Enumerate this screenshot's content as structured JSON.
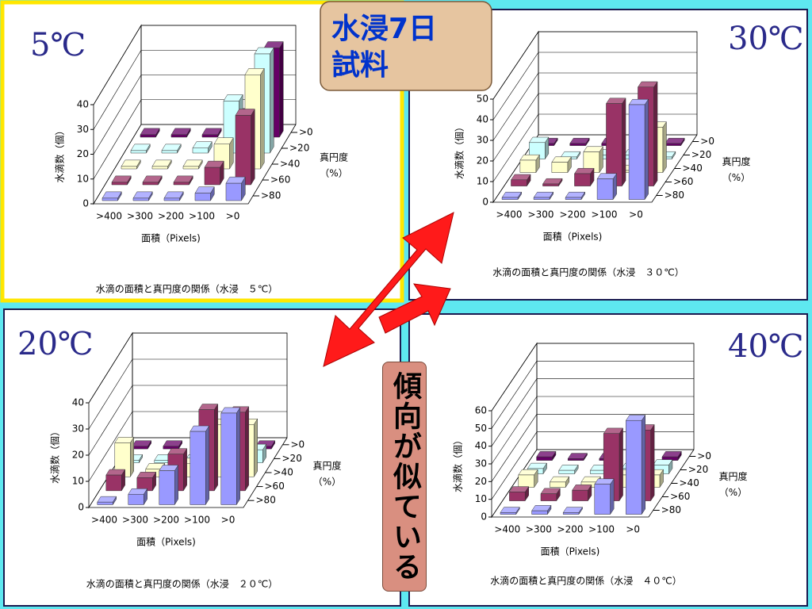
{
  "slide": {
    "title_lines": [
      "水浸7日",
      "試料"
    ],
    "callout": "傾向が似ている"
  },
  "chart_data": [
    {
      "type": "bar3d",
      "corner_label": "5℃",
      "title": "水滴の面積と真円度の関係（水浸　５℃）",
      "x_label": "面積（Pixels)",
      "y_label": "水滴数（個）",
      "depth_label": [
        "真円度",
        "（%）"
      ],
      "categories": [
        ">400",
        ">300",
        ">200",
        ">100",
        ">0"
      ],
      "ylim": [
        0,
        40
      ],
      "yticks": [
        0,
        10,
        20,
        30,
        40
      ],
      "series": [
        {
          "name": ">0",
          "color": "#660066",
          "values": [
            1,
            1,
            1,
            9,
            36
          ]
        },
        {
          "name": ">20",
          "color": "#ccffff",
          "values": [
            1,
            1,
            2,
            21,
            40
          ]
        },
        {
          "name": ">40",
          "color": "#ffffcc",
          "values": [
            1,
            1,
            1,
            10,
            38
          ]
        },
        {
          "name": ">60",
          "color": "#993366",
          "values": [
            1,
            1,
            1,
            7,
            28
          ]
        },
        {
          "name": ">80",
          "color": "#9999ff",
          "values": [
            1,
            1,
            1,
            3,
            7
          ]
        }
      ]
    },
    {
      "type": "bar3d",
      "corner_label": "30℃",
      "title": "水滴の面積と真円度の関係（水浸　３０℃）",
      "x_label": "面積（Pixels)",
      "y_label": "水滴数（個）",
      "depth_label": [
        "真円度",
        "（%）"
      ],
      "categories": [
        ">400",
        ">300",
        ">200",
        ">100",
        ">0"
      ],
      "ylim": [
        0,
        50
      ],
      "yticks": [
        0,
        10,
        20,
        30,
        40,
        50
      ],
      "series": [
        {
          "name": ">0",
          "color": "#660066",
          "values": [
            1,
            1,
            1,
            1,
            1
          ]
        },
        {
          "name": ">20",
          "color": "#ccffff",
          "values": [
            8,
            1,
            2,
            2,
            1
          ]
        },
        {
          "name": ">40",
          "color": "#ffffcc",
          "values": [
            6,
            5,
            10,
            1,
            22
          ]
        },
        {
          "name": ">60",
          "color": "#993366",
          "values": [
            3,
            1,
            6,
            40,
            48
          ]
        },
        {
          "name": ">80",
          "color": "#9999ff",
          "values": [
            1,
            1,
            1,
            10,
            46
          ]
        }
      ]
    },
    {
      "type": "bar3d",
      "corner_label": "20℃",
      "title": "水滴の面積と真円度の関係（水浸　２０℃）",
      "x_label": "面積（Pixels)",
      "y_label": "水滴数（個）",
      "depth_label": [
        "真円度",
        "（%）"
      ],
      "categories": [
        ">400",
        ">300",
        ">200",
        ">100",
        ">0"
      ],
      "ylim": [
        0,
        40
      ],
      "yticks": [
        0,
        10,
        20,
        30,
        40
      ],
      "series": [
        {
          "name": ">0",
          "color": "#660066",
          "values": [
            1,
            1,
            1,
            1,
            1
          ]
        },
        {
          "name": ">20",
          "color": "#ccffff",
          "values": [
            1,
            1,
            1,
            1,
            5
          ]
        },
        {
          "name": ">40",
          "color": "#ffffcc",
          "values": [
            13,
            3,
            5,
            20,
            20
          ]
        },
        {
          "name": ">60",
          "color": "#993366",
          "values": [
            6,
            5,
            14,
            31,
            30
          ]
        },
        {
          "name": ">80",
          "color": "#9999ff",
          "values": [
            1,
            4,
            13,
            28,
            35
          ]
        }
      ]
    },
    {
      "type": "bar3d",
      "corner_label": "40℃",
      "title": "水滴の面積と真円度の関係（水浸　４０℃）",
      "x_label": "面積（Pixels)",
      "y_label": "水滴数（個）",
      "depth_label": [
        "真円度",
        "（%）"
      ],
      "categories": [
        ">400",
        ">300",
        ">200",
        ">100",
        ">0"
      ],
      "ylim": [
        0,
        60
      ],
      "yticks": [
        0,
        10,
        20,
        30,
        40,
        50,
        60
      ],
      "series": [
        {
          "name": ">0",
          "color": "#660066",
          "values": [
            2,
            1,
            1,
            1,
            2
          ]
        },
        {
          "name": ">20",
          "color": "#ccffff",
          "values": [
            3,
            2,
            2,
            3,
            5
          ]
        },
        {
          "name": ">40",
          "color": "#ffffcc",
          "values": [
            7,
            3,
            3,
            7,
            7
          ]
        },
        {
          "name": ">60",
          "color": "#993366",
          "values": [
            5,
            4,
            6,
            38,
            40
          ]
        },
        {
          "name": ">80",
          "color": "#9999ff",
          "values": [
            1,
            2,
            1,
            17,
            53
          ]
        }
      ]
    }
  ]
}
